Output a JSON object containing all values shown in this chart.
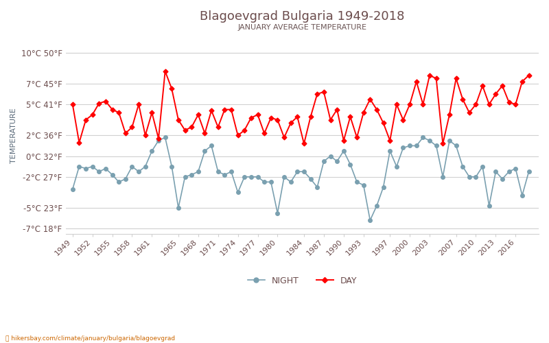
{
  "title": "Blagoevgrad Bulgaria 1949-2018",
  "subtitle": "JANUARY AVERAGE TEMPERATURE",
  "ylabel": "TEMPERATURE",
  "website": "hikersbay.com/climate/january/bulgaria/blagoevgrad",
  "title_color": "#6b4c4c",
  "subtitle_color": "#6b5555",
  "ylabel_color": "#5a6a7a",
  "background_color": "#ffffff",
  "grid_color": "#d0d0d0",
  "day_color": "#ff0000",
  "night_color": "#7aa0b0",
  "years": [
    1949,
    1950,
    1951,
    1952,
    1953,
    1954,
    1955,
    1956,
    1957,
    1958,
    1959,
    1960,
    1961,
    1962,
    1963,
    1964,
    1965,
    1966,
    1967,
    1968,
    1969,
    1970,
    1971,
    1972,
    1973,
    1974,
    1975,
    1976,
    1977,
    1978,
    1979,
    1980,
    1981,
    1982,
    1983,
    1984,
    1985,
    1986,
    1987,
    1988,
    1989,
    1990,
    1991,
    1992,
    1993,
    1994,
    1995,
    1996,
    1997,
    1998,
    1999,
    2000,
    2001,
    2002,
    2003,
    2004,
    2005,
    2006,
    2007,
    2008,
    2009,
    2010,
    2011,
    2012,
    2013,
    2014,
    2015,
    2016,
    2017,
    2018
  ],
  "day_temps": [
    5.0,
    1.3,
    3.5,
    4.0,
    5.1,
    5.3,
    4.5,
    4.2,
    2.2,
    2.8,
    5.0,
    2.0,
    4.2,
    1.7,
    8.2,
    6.5,
    3.5,
    2.5,
    2.8,
    4.0,
    2.2,
    4.4,
    2.8,
    4.5,
    4.5,
    2.0,
    2.5,
    3.7,
    4.0,
    2.2,
    3.7,
    3.5,
    1.8,
    3.2,
    3.8,
    1.2,
    3.8,
    6.0,
    6.2,
    3.5,
    4.5,
    1.5,
    3.8,
    1.8,
    4.2,
    5.5,
    4.5,
    3.2,
    1.5,
    5.0,
    3.5,
    5.0,
    7.2,
    5.0,
    7.8,
    7.5,
    1.2,
    4.0,
    7.5,
    5.5,
    4.2,
    5.0,
    6.8,
    5.0,
    6.0,
    6.8,
    5.2,
    5.0,
    7.2,
    7.8
  ],
  "night_temps": [
    -3.2,
    -1.0,
    -1.2,
    -1.0,
    -1.5,
    -1.2,
    -1.8,
    -2.5,
    -2.2,
    -1.0,
    -1.5,
    -1.0,
    0.5,
    1.5,
    1.8,
    -1.0,
    -5.0,
    -2.0,
    -1.8,
    -1.5,
    0.5,
    1.0,
    -1.5,
    -1.8,
    -1.5,
    -3.5,
    -2.0,
    -2.0,
    -2.0,
    -2.5,
    -2.5,
    -5.5,
    -2.0,
    -2.5,
    -1.5,
    -1.5,
    -2.2,
    -3.0,
    -0.5,
    0.0,
    -0.5,
    0.5,
    -0.8,
    -2.5,
    -2.8,
    -6.2,
    -4.8,
    -3.0,
    0.5,
    -1.0,
    0.8,
    1.0,
    1.0,
    1.8,
    1.5,
    1.0,
    -2.0,
    1.5,
    1.0,
    -1.0,
    -2.0,
    -2.0,
    -1.0,
    -4.8,
    -1.5,
    -2.2,
    -1.5,
    -1.2,
    -3.8,
    -1.5
  ],
  "yticks_celsius": [
    -7,
    -5,
    -2,
    0,
    2,
    5,
    7,
    10
  ],
  "yticks_fahrenheit": [
    18,
    23,
    27,
    32,
    36,
    41,
    45,
    50
  ],
  "xticks": [
    1949,
    1952,
    1955,
    1958,
    1961,
    1965,
    1968,
    1971,
    1974,
    1977,
    1980,
    1984,
    1987,
    1990,
    1993,
    1997,
    2000,
    2003,
    2007,
    2010,
    2013,
    2016
  ],
  "ylim": [
    -7.5,
    11.5
  ],
  "xlim": [
    1948.0,
    2019.5
  ]
}
